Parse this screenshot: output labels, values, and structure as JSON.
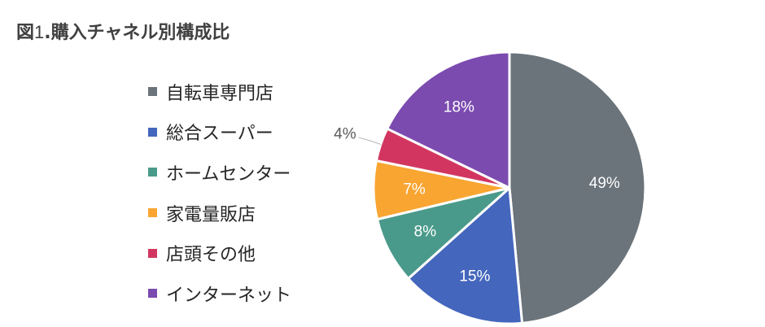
{
  "chart_data": {
    "type": "pie",
    "title_prefix": "図",
    "title_number": "1",
    "title_text": ".購入チャネル別構成比",
    "start_angle_deg": 0,
    "direction": "clockwise",
    "slices": [
      {
        "label": "自転車専門店",
        "value": 49,
        "value_label": "49%",
        "color": "#6b747b"
      },
      {
        "label": "総合スーパー",
        "value": 15,
        "value_label": "15%",
        "color": "#4466bd"
      },
      {
        "label": "ホームセンター",
        "value": 8,
        "value_label": "8%",
        "color": "#4a9a8b"
      },
      {
        "label": "家電量販店",
        "value": 7,
        "value_label": "7%",
        "color": "#f8a531"
      },
      {
        "label": "店頭その他",
        "value": 4,
        "value_label": "4%",
        "color": "#d23660"
      },
      {
        "label": "インターネット",
        "value": 18,
        "value_label": "18%",
        "color": "#7b4bb0"
      }
    ],
    "legend_position": "left"
  }
}
